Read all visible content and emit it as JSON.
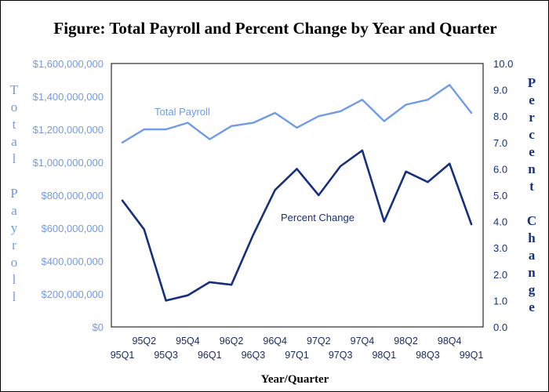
{
  "chart_data": {
    "type": "line",
    "title": "Figure:  Total Payroll and Percent Change by Year and Quarter",
    "xlabel": "Year/Quarter",
    "ylabel_left": "Total Payroll",
    "ylabel_right": "Percent Change",
    "categories": [
      "95Q1",
      "95Q2",
      "95Q3",
      "95Q4",
      "96Q1",
      "96Q2",
      "96Q3",
      "96Q4",
      "97Q1",
      "97Q2",
      "97Q3",
      "97Q4",
      "98Q1",
      "98Q2",
      "98Q3",
      "98Q4",
      "99Q1"
    ],
    "x_tick_labels_lower": [
      "95Q1",
      "95Q3",
      "96Q1",
      "96Q3",
      "97Q1",
      "97Q3",
      "98Q1",
      "98Q3",
      "99Q1"
    ],
    "x_tick_labels_upper": [
      "95Q2",
      "95Q4",
      "96Q2",
      "96Q4",
      "97Q2",
      "97Q4",
      "98Q2",
      "98Q4"
    ],
    "y_left": {
      "min": 0,
      "max": 1600000000,
      "tick_labels": [
        "$0",
        "$200,000,000",
        "$400,000,000",
        "$600,000,000",
        "$800,000,000",
        "$1,000,000,000",
        "$1,200,000,000",
        "$1,400,000,000",
        "$1,600,000,000"
      ]
    },
    "y_right": {
      "min": 0,
      "max": 10,
      "tick_labels": [
        "0.0",
        "1.0",
        "2.0",
        "3.0",
        "4.0",
        "5.0",
        "6.0",
        "7.0",
        "8.0",
        "9.0",
        "10.0"
      ]
    },
    "series": [
      {
        "name": "Total Payroll",
        "axis": "left",
        "color": "#6f9be8",
        "label_position": "near 95Q3-96Q3 above line",
        "values": [
          1120000000,
          1200000000,
          1200000000,
          1240000000,
          1140000000,
          1220000000,
          1240000000,
          1300000000,
          1210000000,
          1280000000,
          1310000000,
          1380000000,
          1250000000,
          1350000000,
          1380000000,
          1470000000,
          1300000000
        ]
      },
      {
        "name": "Percent Change",
        "axis": "right",
        "color": "#15307f",
        "label_position": "near 97Q1-98Q1 below line",
        "values": [
          4.8,
          3.7,
          1.0,
          1.2,
          1.7,
          1.6,
          3.5,
          5.2,
          6.0,
          5.0,
          6.1,
          6.7,
          4.0,
          5.9,
          5.5,
          6.2,
          3.9
        ]
      }
    ],
    "grid": false,
    "legend": "none"
  },
  "colors": {
    "payroll": "#6f9be8",
    "percent": "#15307f",
    "title": "#000000"
  }
}
